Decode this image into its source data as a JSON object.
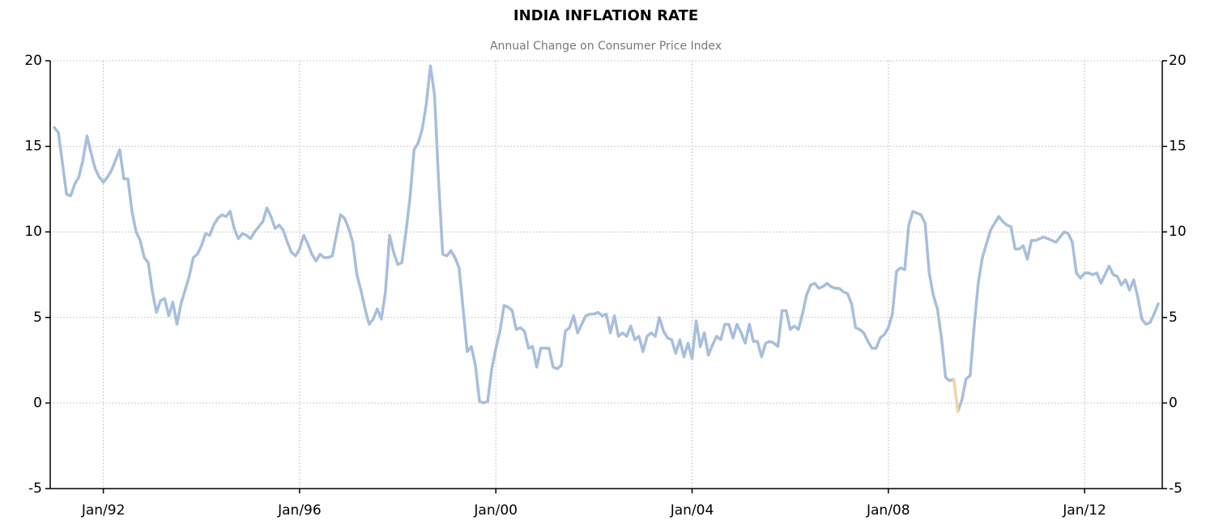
{
  "chart_data": {
    "type": "line",
    "title": "INDIA INFLATION RATE",
    "subtitle": "Annual Change on Consumer Price Index",
    "x": [
      "1991-01",
      "1991-02",
      "1991-03",
      "1991-04",
      "1991-05",
      "1991-06",
      "1991-07",
      "1991-08",
      "1991-09",
      "1991-10",
      "1991-11",
      "1991-12",
      "1992-01",
      "1992-02",
      "1992-03",
      "1992-04",
      "1992-05",
      "1992-06",
      "1992-07",
      "1992-08",
      "1992-09",
      "1992-10",
      "1992-11",
      "1992-12",
      "1993-01",
      "1993-02",
      "1993-03",
      "1993-04",
      "1993-05",
      "1993-06",
      "1993-07",
      "1993-08",
      "1993-09",
      "1993-10",
      "1993-11",
      "1993-12",
      "1994-01",
      "1994-02",
      "1994-03",
      "1994-04",
      "1994-05",
      "1994-06",
      "1994-07",
      "1994-08",
      "1994-09",
      "1994-10",
      "1994-11",
      "1994-12",
      "1995-01",
      "1995-02",
      "1995-03",
      "1995-04",
      "1995-05",
      "1995-06",
      "1995-07",
      "1995-08",
      "1995-09",
      "1995-10",
      "1995-11",
      "1995-12",
      "1996-01",
      "1996-02",
      "1996-03",
      "1996-04",
      "1996-05",
      "1996-06",
      "1996-07",
      "1996-08",
      "1996-09",
      "1996-10",
      "1996-11",
      "1996-12",
      "1997-01",
      "1997-02",
      "1997-03",
      "1997-04",
      "1997-05",
      "1997-06",
      "1997-07",
      "1997-08",
      "1997-09",
      "1997-10",
      "1997-11",
      "1997-12",
      "1998-01",
      "1998-02",
      "1998-03",
      "1998-04",
      "1998-05",
      "1998-06",
      "1998-07",
      "1998-08",
      "1998-09",
      "1998-10",
      "1998-11",
      "1998-12",
      "1999-01",
      "1999-02",
      "1999-03",
      "1999-04",
      "1999-05",
      "1999-06",
      "1999-07",
      "1999-08",
      "1999-09",
      "1999-10",
      "1999-11",
      "1999-12",
      "2000-01",
      "2000-02",
      "2000-03",
      "2000-04",
      "2000-05",
      "2000-06",
      "2000-07",
      "2000-08",
      "2000-09",
      "2000-10",
      "2000-11",
      "2000-12",
      "2001-01",
      "2001-02",
      "2001-03",
      "2001-04",
      "2001-05",
      "2001-06",
      "2001-07",
      "2001-08",
      "2001-09",
      "2001-10",
      "2001-11",
      "2001-12",
      "2002-01",
      "2002-02",
      "2002-03",
      "2002-04",
      "2002-05",
      "2002-06",
      "2002-07",
      "2002-08",
      "2002-09",
      "2002-10",
      "2002-11",
      "2002-12",
      "2003-01",
      "2003-02",
      "2003-03",
      "2003-04",
      "2003-05",
      "2003-06",
      "2003-07",
      "2003-08",
      "2003-09",
      "2003-10",
      "2003-11",
      "2003-12",
      "2004-01",
      "2004-02",
      "2004-03",
      "2004-04",
      "2004-05",
      "2004-06",
      "2004-07",
      "2004-08",
      "2004-09",
      "2004-10",
      "2004-11",
      "2004-12",
      "2005-01",
      "2005-02",
      "2005-03",
      "2005-04",
      "2005-05",
      "2005-06",
      "2005-07",
      "2005-08",
      "2005-09",
      "2005-10",
      "2005-11",
      "2005-12",
      "2006-01",
      "2006-02",
      "2006-03",
      "2006-04",
      "2006-05",
      "2006-06",
      "2006-07",
      "2006-08",
      "2006-09",
      "2006-10",
      "2006-11",
      "2006-12",
      "2007-01",
      "2007-02",
      "2007-03",
      "2007-04",
      "2007-05",
      "2007-06",
      "2007-07",
      "2007-08",
      "2007-09",
      "2007-10",
      "2007-11",
      "2007-12",
      "2008-01",
      "2008-02",
      "2008-03",
      "2008-04",
      "2008-05",
      "2008-06",
      "2008-07",
      "2008-08",
      "2008-09",
      "2008-10",
      "2008-11",
      "2008-12",
      "2009-01",
      "2009-02",
      "2009-03",
      "2009-04",
      "2009-05",
      "2009-06",
      "2009-07",
      "2009-08",
      "2009-09",
      "2009-10",
      "2009-11",
      "2009-12",
      "2010-01",
      "2010-02",
      "2010-03",
      "2010-04",
      "2010-05",
      "2010-06",
      "2010-07",
      "2010-08",
      "2010-09",
      "2010-10",
      "2010-11",
      "2010-12",
      "2011-01",
      "2011-02",
      "2011-03",
      "2011-04",
      "2011-05",
      "2011-06",
      "2011-07",
      "2011-08",
      "2011-09",
      "2011-10",
      "2011-11",
      "2011-12",
      "2012-01",
      "2012-02",
      "2012-03",
      "2012-04",
      "2012-05",
      "2012-06",
      "2012-07",
      "2012-08",
      "2012-09",
      "2012-10",
      "2012-11",
      "2012-12",
      "2013-01",
      "2013-02",
      "2013-03",
      "2013-04",
      "2013-05",
      "2013-06",
      "2013-07"
    ],
    "series": [
      {
        "color": "#a7bedd",
        "values": [
          16.1,
          15.8,
          14,
          12.2,
          12.1,
          12.8,
          13.2,
          14.2,
          15.6,
          14.6,
          13.7,
          13.2,
          12.9,
          13.2,
          13.6,
          14.2,
          14.8,
          13.1,
          13.1,
          11.2,
          10,
          9.5,
          8.5,
          8.2,
          6.5,
          5.3,
          6,
          6.1,
          5.1,
          5.9,
          4.6,
          5.8,
          6.6,
          7.4,
          8.5,
          8.7,
          9.2,
          9.9,
          9.8,
          10.4,
          10.8,
          11,
          10.9,
          11.2,
          10.2,
          9.6,
          9.9,
          9.8,
          9.6,
          10,
          10.3,
          10.6,
          11.4,
          10.9,
          10.2,
          10.4,
          10.1,
          9.4,
          8.8,
          8.6,
          9,
          9.8,
          9.3,
          8.7,
          8.3,
          8.7,
          8.5,
          8.5,
          8.6,
          9.8,
          11,
          10.8,
          10.2,
          9.4,
          7.5,
          6.6,
          5.5,
          4.6,
          4.9,
          5.5,
          4.9,
          6.5,
          9.8,
          8.8,
          8.1,
          8.2,
          10,
          12,
          14.8,
          15.2,
          16,
          17.5,
          19.7,
          18,
          13,
          8.7,
          8.6,
          8.9,
          8.5,
          7.9,
          5.5,
          3,
          3.3,
          2.2,
          0.1,
          0,
          0.1,
          2,
          3.2,
          4.2,
          5.7,
          5.6,
          5.4,
          4.3,
          4.4,
          4.2,
          3.2,
          3.3,
          2.1,
          3.2,
          3.2,
          3.2,
          2.1,
          2,
          2.2,
          4.2,
          4.4,
          5.1,
          4.1,
          4.6,
          5.1,
          5.2,
          5.2,
          5.3,
          5.1,
          5.2,
          4.1,
          5.1,
          3.9,
          4.1,
          3.9,
          4.5,
          3.7,
          3.9,
          3,
          3.9,
          4.1,
          3.9,
          5,
          4.2,
          3.8,
          3.7,
          2.9,
          3.7,
          2.7,
          3.5,
          2.6,
          4.8,
          3.3,
          4.1,
          2.8,
          3.4,
          3.9,
          3.7,
          4.6,
          4.6,
          3.8,
          4.6,
          4.1,
          3.5,
          4.6,
          3.6,
          3.6,
          2.7,
          3.5,
          3.6,
          3.5,
          3.3,
          5.4,
          5.4,
          4.3,
          4.5,
          4.3,
          5.2,
          6.3,
          6.9,
          7,
          6.7,
          6.8,
          7,
          6.8,
          6.7,
          6.7,
          6.5,
          6.4,
          5.8,
          4.4,
          4.3,
          4.1,
          3.6,
          3.2,
          3.2,
          3.8,
          4,
          4.4,
          5.2,
          7.7,
          7.9,
          7.8,
          10.4,
          11.2,
          11.1,
          11,
          10.5,
          7.6,
          6.3,
          5.5,
          3.8,
          1.5,
          1.3,
          1.4,
          -0.5,
          0.2,
          1.4,
          1.6,
          4.5,
          7,
          8.5,
          9.3,
          10.1,
          10.5,
          10.9,
          10.6,
          10.4,
          10.3,
          9,
          9,
          9.2,
          8.4,
          9.5,
          9.5,
          9.6,
          9.7,
          9.6,
          9.5,
          9.4,
          9.7,
          10,
          9.9,
          9.4,
          7.6,
          7.3,
          7.6,
          7.6,
          7.5,
          7.6,
          7,
          7.5,
          8,
          7.5,
          7.4,
          6.9,
          7.2,
          6.6,
          7.2,
          6.2,
          4.9,
          4.6,
          4.7,
          5.2,
          5.8
        ]
      },
      {
        "color": "#f5d5a0",
        "values": [
          null,
          null,
          null,
          null,
          null,
          null,
          null,
          null,
          null,
          null,
          null,
          null,
          null,
          null,
          null,
          null,
          null,
          null,
          null,
          null,
          null,
          null,
          null,
          null,
          null,
          null,
          null,
          null,
          null,
          null,
          null,
          null,
          null,
          null,
          null,
          null,
          null,
          null,
          null,
          null,
          null,
          null,
          null,
          null,
          null,
          null,
          null,
          null,
          null,
          null,
          null,
          null,
          null,
          null,
          null,
          null,
          null,
          null,
          null,
          null,
          null,
          null,
          null,
          null,
          null,
          null,
          null,
          null,
          null,
          null,
          null,
          null,
          null,
          null,
          null,
          null,
          null,
          null,
          null,
          null,
          null,
          null,
          null,
          null,
          null,
          null,
          null,
          null,
          null,
          null,
          null,
          null,
          null,
          null,
          null,
          null,
          null,
          null,
          null,
          null,
          null,
          null,
          null,
          null,
          null,
          null,
          null,
          null,
          null,
          null,
          null,
          null,
          null,
          null,
          null,
          null,
          null,
          null,
          null,
          null,
          null,
          null,
          null,
          null,
          null,
          null,
          null,
          null,
          null,
          null,
          null,
          null,
          null,
          null,
          null,
          null,
          null,
          null,
          null,
          null,
          null,
          null,
          null,
          null,
          null,
          null,
          null,
          null,
          null,
          null,
          null,
          null,
          null,
          null,
          null,
          null,
          null,
          null,
          null,
          null,
          null,
          null,
          null,
          null,
          null,
          null,
          null,
          null,
          null,
          null,
          null,
          null,
          null,
          null,
          null,
          null,
          null,
          null,
          null,
          null,
          null,
          null,
          null,
          null,
          null,
          null,
          null,
          null,
          null,
          null,
          null,
          null,
          null,
          null,
          null,
          null,
          null,
          null,
          null,
          null,
          null,
          null,
          null,
          null,
          null,
          null,
          null,
          null,
          null,
          null,
          null,
          null,
          null,
          null,
          null,
          null,
          null,
          null,
          null,
          null,
          1.4,
          -0.5,
          null,
          null,
          null,
          null,
          null,
          null,
          null,
          null,
          null,
          null,
          null,
          null,
          null,
          null,
          null,
          null,
          null,
          null,
          null,
          null,
          null,
          null,
          null,
          null,
          null,
          null,
          null,
          null,
          null,
          null,
          null,
          null,
          null,
          null,
          null,
          null,
          null,
          null,
          null,
          null,
          null,
          null,
          null,
          null,
          null,
          null,
          null,
          null,
          null
        ]
      }
    ],
    "xlim": [
      "1990-12",
      "2013-08"
    ],
    "xticks": [
      {
        "value": "1992-01",
        "label": "Jan/92"
      },
      {
        "value": "1996-01",
        "label": "Jan/96"
      },
      {
        "value": "2000-01",
        "label": "Jan/00"
      },
      {
        "value": "2004-01",
        "label": "Jan/04"
      },
      {
        "value": "2008-01",
        "label": "Jan/08"
      },
      {
        "value": "2012-01",
        "label": "Jan/12"
      }
    ],
    "ylim": [
      -5,
      20
    ],
    "yticks": [
      -5,
      0,
      5,
      10,
      15,
      20
    ],
    "y2lim": [
      -5,
      20
    ],
    "y2ticks": [
      -5,
      0,
      5,
      10,
      15,
      20
    ],
    "grid": true
  }
}
